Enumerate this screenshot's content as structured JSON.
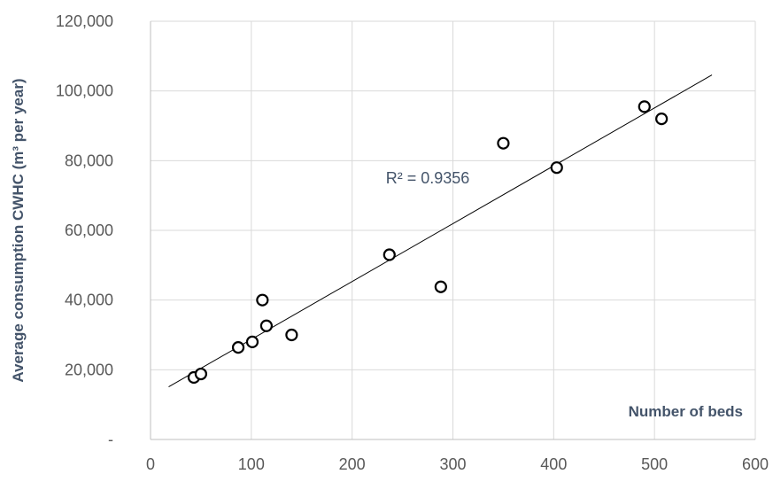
{
  "chart_data": {
    "type": "scatter",
    "xlabel": "Number of beds",
    "ylabel": "Average consumption CWHC (m³ per year)",
    "xlim": [
      0,
      600
    ],
    "ylim": [
      0,
      120000
    ],
    "x_ticks": [
      {
        "value": 0,
        "label": "0"
      },
      {
        "value": 100,
        "label": "100"
      },
      {
        "value": 200,
        "label": "200"
      },
      {
        "value": 300,
        "label": "300"
      },
      {
        "value": 400,
        "label": "400"
      },
      {
        "value": 500,
        "label": "500"
      },
      {
        "value": 600,
        "label": "600"
      }
    ],
    "y_ticks": [
      {
        "value": 0,
        "label": "-"
      },
      {
        "value": 20000,
        "label": "20,000"
      },
      {
        "value": 40000,
        "label": "40,000"
      },
      {
        "value": 60000,
        "label": "60,000"
      },
      {
        "value": 80000,
        "label": "80,000"
      },
      {
        "value": 100000,
        "label": "100,000"
      },
      {
        "value": 120000,
        "label": "120,000"
      }
    ],
    "grid": {
      "vertical": true,
      "horizontal": true
    },
    "points": [
      {
        "x": 43,
        "y": 17800
      },
      {
        "x": 50,
        "y": 18800
      },
      {
        "x": 87,
        "y": 26400
      },
      {
        "x": 101,
        "y": 28000
      },
      {
        "x": 111,
        "y": 40000
      },
      {
        "x": 115,
        "y": 32600
      },
      {
        "x": 140,
        "y": 30000
      },
      {
        "x": 237,
        "y": 53000
      },
      {
        "x": 288,
        "y": 43800
      },
      {
        "x": 350,
        "y": 85000
      },
      {
        "x": 403,
        "y": 78000
      },
      {
        "x": 490,
        "y": 95500
      },
      {
        "x": 507,
        "y": 92000
      }
    ],
    "trendline": {
      "from": {
        "x": 18,
        "y": 15100
      },
      "to": {
        "x": 557,
        "y": 104600
      },
      "r_squared_label": "R² = 0.9356",
      "label_anchor": {
        "x": 275,
        "y": 73500
      }
    },
    "colors": {
      "axis_title": "#44546A",
      "tick_label": "#595959",
      "grid": "#d9d9d9",
      "marker_edge": "#000000",
      "trendline": "#000000"
    }
  }
}
